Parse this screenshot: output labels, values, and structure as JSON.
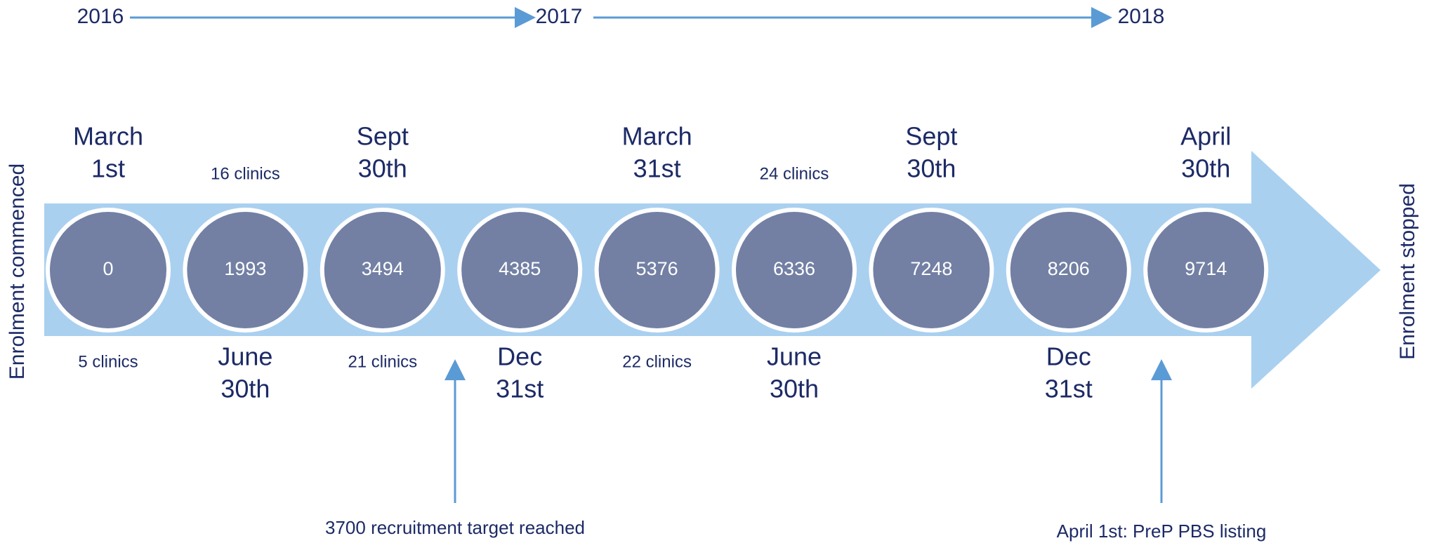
{
  "years": [
    "2016",
    "2017",
    "2018"
  ],
  "milestones": [
    {
      "date": [
        "March",
        "1st"
      ],
      "count": "0",
      "clinics": "5 clinics"
    },
    {
      "date": [
        "June",
        "30th"
      ],
      "count": "1993",
      "clinics": "16 clinics"
    },
    {
      "date": [
        "Sept",
        "30th"
      ],
      "count": "3494",
      "clinics": "21 clinics"
    },
    {
      "date": [
        "Dec",
        "31st"
      ],
      "count": "4385"
    },
    {
      "date": [
        "March",
        "31st"
      ],
      "count": "5376",
      "clinics": "22 clinics"
    },
    {
      "date": [
        "June",
        "30th"
      ],
      "count": "6336",
      "clinics": "24 clinics"
    },
    {
      "date": [
        "Sept",
        "30th"
      ],
      "count": "7248"
    },
    {
      "date": [
        "Dec",
        "31st"
      ],
      "count": "8206"
    },
    {
      "date": [
        "April",
        "30th"
      ],
      "count": "9714"
    }
  ],
  "start_label": "Enrolment commenced",
  "end_label": "Enrolment stopped",
  "annotations": [
    "3700 recruitment target reached",
    "April 1st: PreP PBS listing"
  ]
}
